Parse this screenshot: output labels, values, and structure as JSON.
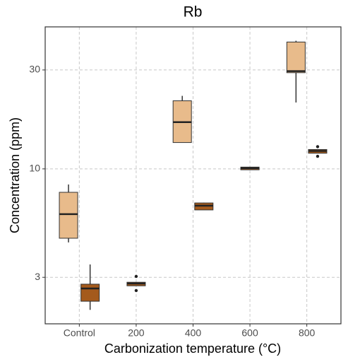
{
  "chart_data": {
    "type": "box",
    "title": "Rb",
    "x_label": "Carbonization temperature (°C)",
    "y_label": "Concentration (ppm)",
    "categories": [
      "Control",
      "200",
      "400",
      "600",
      "800"
    ],
    "log_scale": true,
    "grid": true,
    "ylim": [
      1.79,
      48.4
    ],
    "yticks": [
      3,
      10,
      30
    ],
    "series": [
      {
        "color": "#e8bb8b",
        "boxes": [
          {
            "min": 4.42,
            "q1": 4.63,
            "median": 6.05,
            "q3": 7.71,
            "max": 8.41,
            "outliers": []
          },
          null,
          {
            "min": 13.4,
            "q1": 13.4,
            "median": 16.8,
            "q3": 21.3,
            "max": 22.5,
            "outliers": []
          },
          null,
          {
            "min": 20.9,
            "q1": 29.1,
            "median": 29.6,
            "q3": 40.9,
            "max": 41.5,
            "outliers": []
          }
        ]
      },
      {
        "color": "#a45a1c",
        "boxes": [
          {
            "min": 2.09,
            "q1": 2.3,
            "median": 2.65,
            "q3": 2.78,
            "max": 3.46,
            "outliers": []
          },
          {
            "min": 2.73,
            "q1": 2.73,
            "median": 2.8,
            "q3": 2.84,
            "max": 2.84,
            "outliers": [
              3.03,
              2.59
            ]
          },
          {
            "min": 6.34,
            "q1": 6.34,
            "median": 6.65,
            "q3": 6.85,
            "max": 6.88,
            "outliers": []
          },
          {
            "min": 9.9,
            "q1": 9.9,
            "median": 10.08,
            "q3": 10.2,
            "max": 10.2,
            "outliers": []
          },
          {
            "min": 11.9,
            "q1": 11.9,
            "median": 12.2,
            "q3": 12.4,
            "max": 12.4,
            "outliers": [
              12.8,
              11.5
            ]
          }
        ]
      }
    ]
  }
}
